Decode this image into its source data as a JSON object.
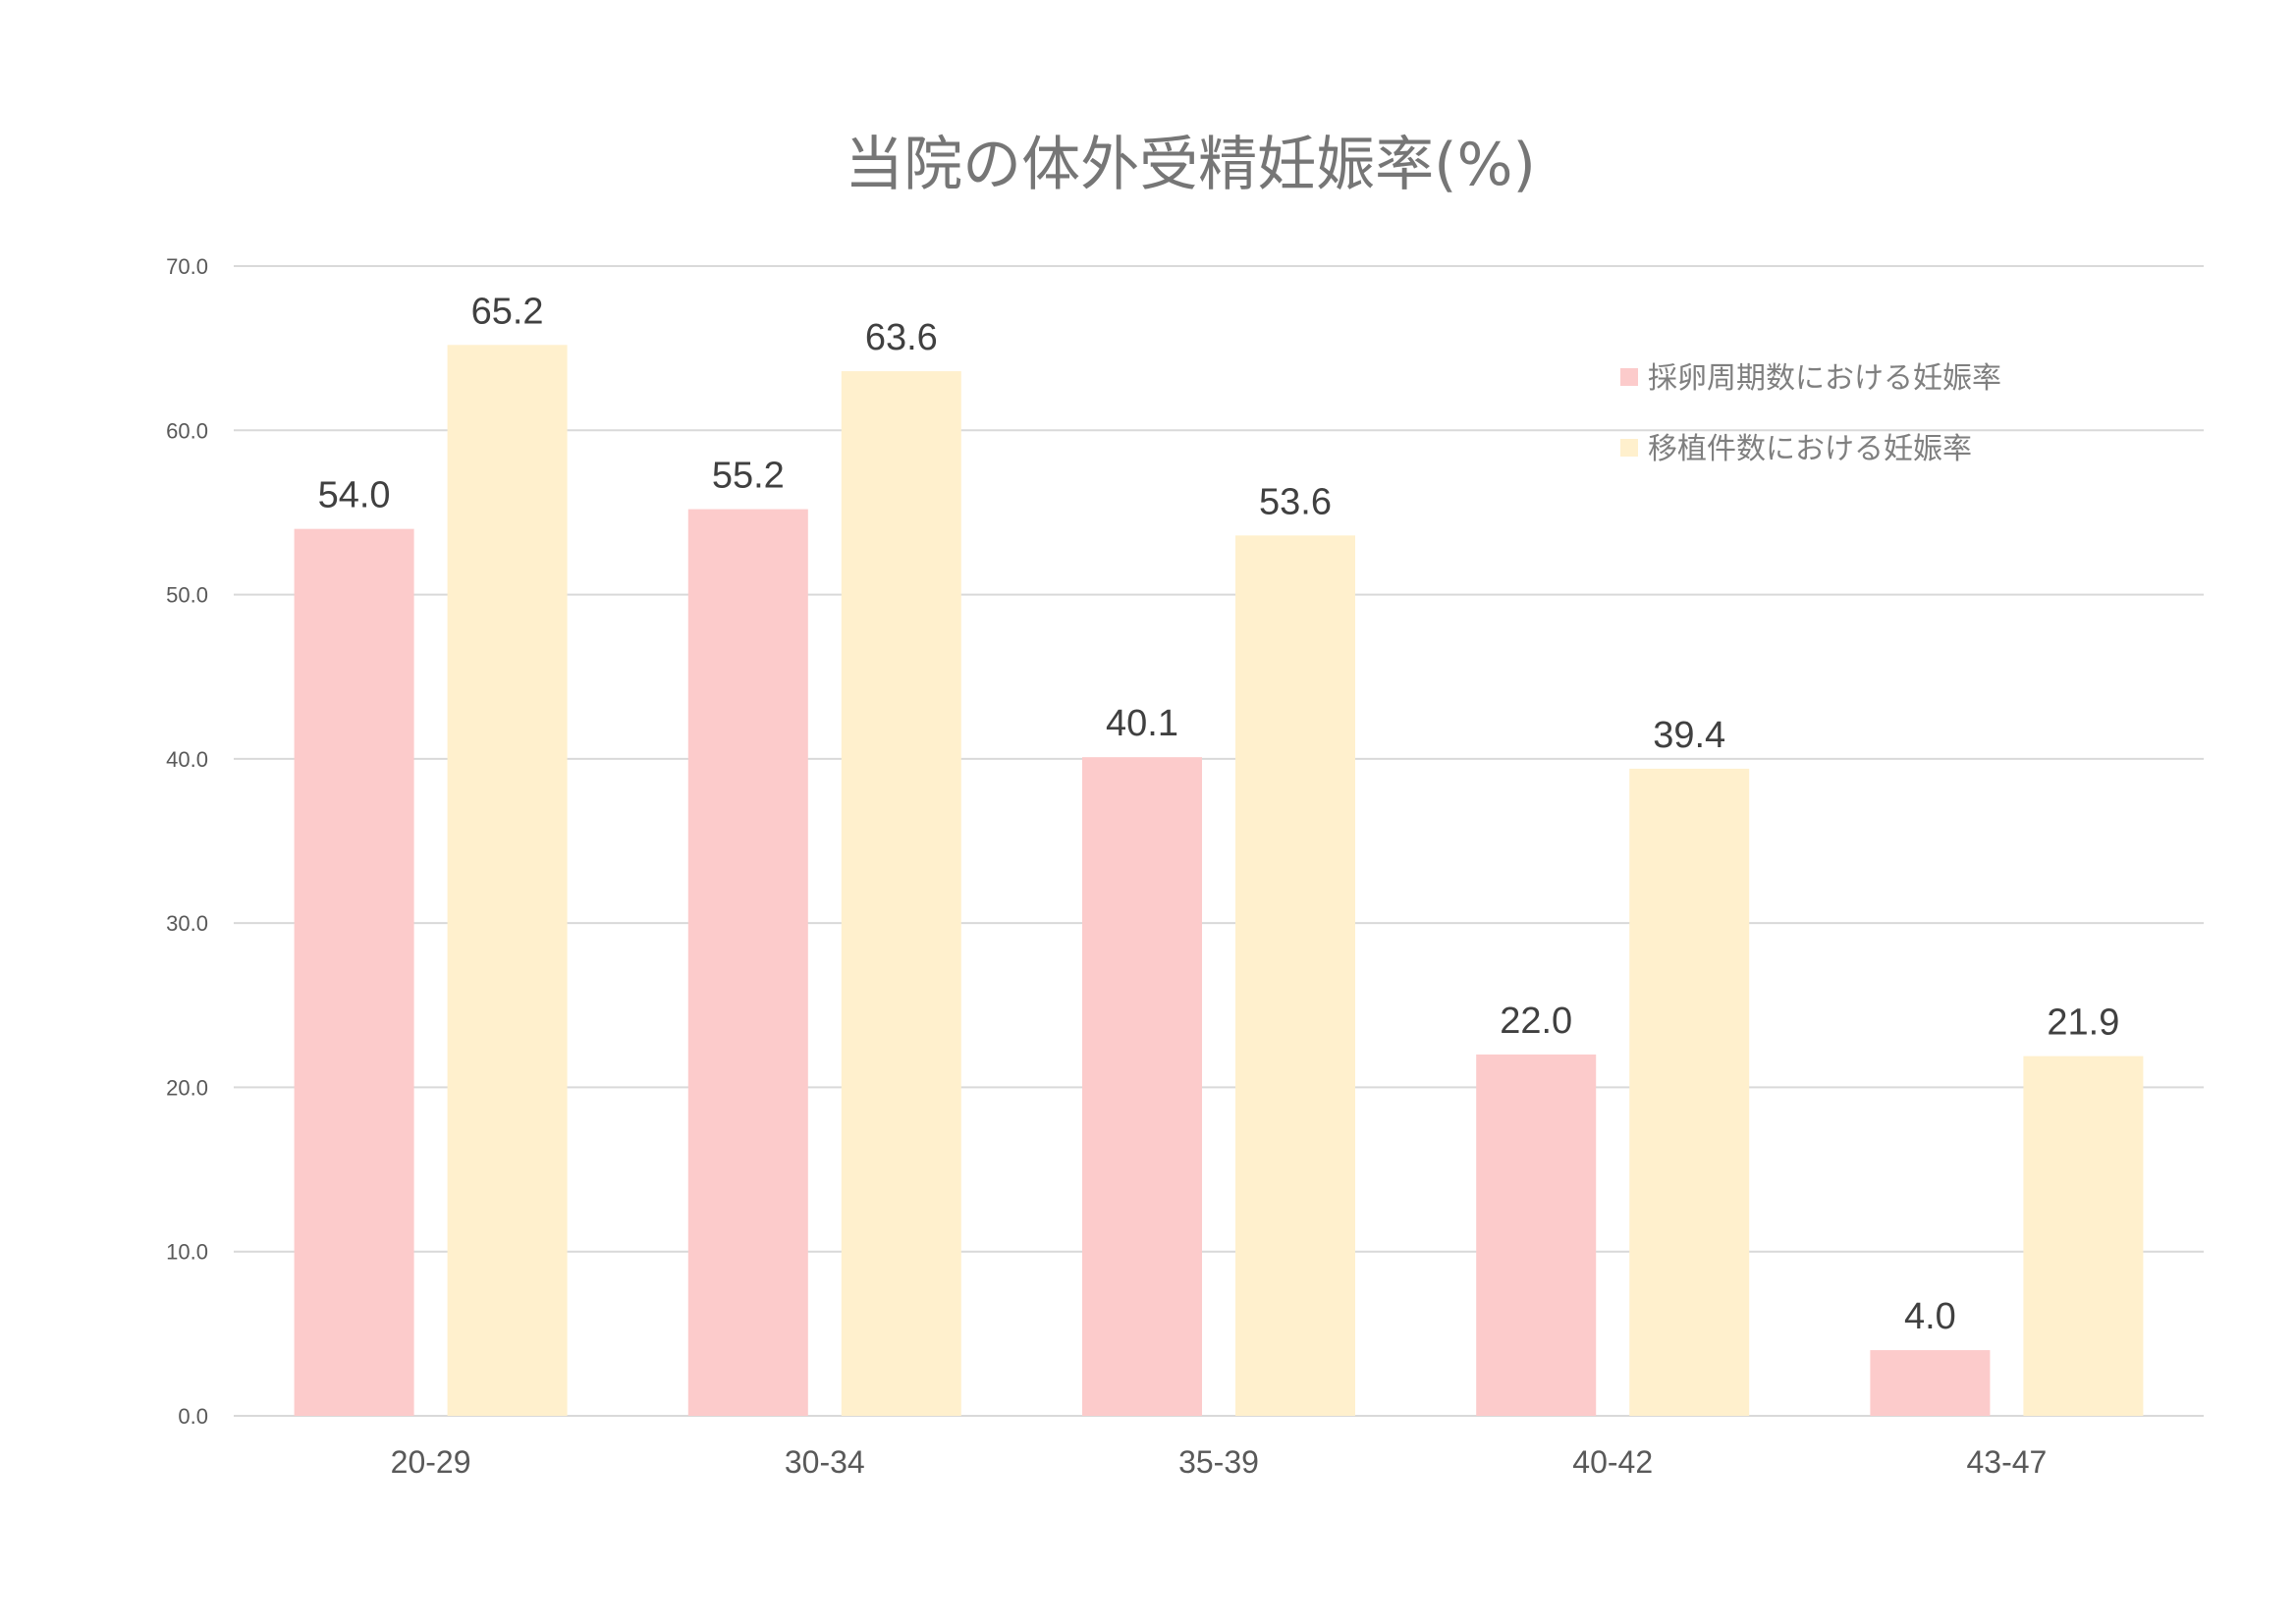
{
  "chart_data": {
    "type": "bar",
    "title": "当院の体外受精妊娠率(%)",
    "categories": [
      "20-29",
      "30-34",
      "35-39",
      "40-42",
      "43-47"
    ],
    "series": [
      {
        "name": "採卵周期数における妊娠率",
        "values": [
          54.0,
          55.2,
          40.1,
          22.0,
          4.0
        ],
        "color": "#fccbcb"
      },
      {
        "name": "移植件数における妊娠率",
        "values": [
          65.2,
          63.6,
          53.6,
          39.4,
          21.9
        ],
        "color": "#fff0cd"
      }
    ],
    "ylim": [
      0,
      70
    ],
    "yticks": [
      "0.0",
      "10.0",
      "20.0",
      "30.0",
      "40.0",
      "50.0",
      "60.0",
      "70.0"
    ],
    "xlabel": "",
    "ylabel": "",
    "grid": true,
    "legend_position": "top-right",
    "data_labels": true
  }
}
